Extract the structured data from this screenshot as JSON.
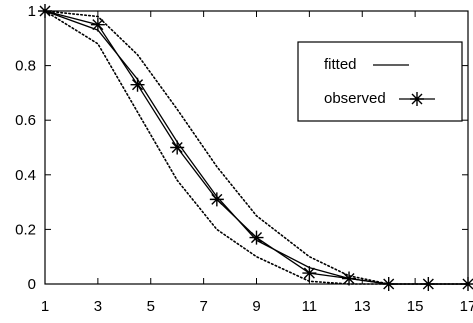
{
  "chart_data": {
    "type": "line",
    "x_ticks": [
      1,
      3,
      5,
      7,
      9,
      11,
      13,
      15,
      17
    ],
    "y_ticks": [
      0,
      0.2,
      0.4,
      0.6,
      0.8,
      1
    ],
    "y_tick_labels": [
      "0",
      "0.2",
      "0.4",
      "0.6",
      "0.8",
      "1"
    ],
    "xlim": [
      1,
      17
    ],
    "ylim": [
      0,
      1
    ],
    "grid": false,
    "legend_position": "top-right",
    "series": [
      {
        "name": "fitted",
        "style": "solid",
        "x": [
          1,
          3,
          4.5,
          6,
          7.5,
          9,
          11,
          12.5,
          14,
          15.5,
          17
        ],
        "y": [
          1,
          0.93,
          0.75,
          0.52,
          0.32,
          0.16,
          0.06,
          0.02,
          0,
          0,
          0
        ]
      },
      {
        "name": "observed",
        "style": "solid-star",
        "x": [
          1,
          3,
          4.5,
          6,
          7.5,
          9,
          11,
          12.5,
          14,
          15.5,
          17
        ],
        "y": [
          1,
          0.95,
          0.73,
          0.5,
          0.31,
          0.17,
          0.04,
          0.02,
          0,
          0,
          0
        ]
      },
      {
        "style": "dotted-upper",
        "x": [
          1,
          3,
          4.5,
          6,
          7.5,
          9,
          11,
          12.5,
          14,
          15.5,
          17
        ],
        "y": [
          1,
          0.98,
          0.84,
          0.64,
          0.43,
          0.25,
          0.1,
          0.03,
          0,
          0,
          0
        ]
      },
      {
        "style": "dotted-lower",
        "x": [
          1,
          3,
          4.5,
          6,
          7.5,
          9,
          11,
          12.5,
          14,
          15.5,
          17
        ],
        "y": [
          1,
          0.88,
          0.63,
          0.38,
          0.2,
          0.1,
          0.01,
          0,
          0,
          0,
          0
        ]
      }
    ],
    "legend": {
      "fitted_label": "fitted",
      "observed_label": "observed"
    },
    "colors": {
      "line": "#000000",
      "background": "#ffffff"
    }
  }
}
